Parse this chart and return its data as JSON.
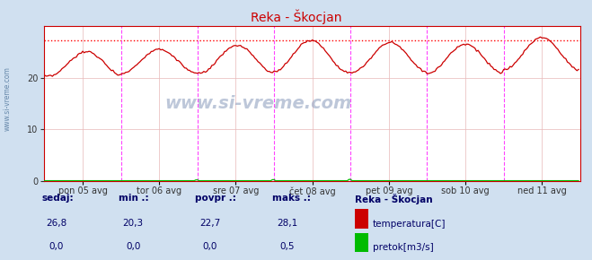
{
  "title": "Reka - Škocjan",
  "bg_color": "#d0e0f0",
  "plot_bg_color": "#ffffff",
  "x_labels": [
    "pon 05 avg",
    "tor 06 avg",
    "sre 07 avg",
    "čet 08 avg",
    "pet 09 avg",
    "sob 10 avg",
    "ned 11 avg"
  ],
  "y_ticks": [
    0,
    10,
    20
  ],
  "ylim": [
    0,
    30
  ],
  "xlim": [
    0,
    336
  ],
  "grid_color": "#e8b8b8",
  "temp_color": "#cc0000",
  "flow_color": "#00bb00",
  "max_line_color": "#ff0000",
  "max_line_y": 27.2,
  "vline_color": "#ff44ff",
  "watermark": "www.si-vreme.com",
  "legend_title": "Reka - Škocjan",
  "legend_items": [
    "temperatura[C]",
    "pretok[m3/s]"
  ],
  "legend_colors": [
    "#cc0000",
    "#00bb00"
  ],
  "stats_labels": [
    "sedaj:",
    "min .:",
    "povpr .:",
    "maks .:"
  ],
  "stats_temp": [
    "26,8",
    "20,3",
    "22,7",
    "28,1"
  ],
  "stats_flow": [
    "0,0",
    "0,0",
    "0,0",
    "0,5"
  ],
  "n_points": 336,
  "vlines_x": [
    48,
    96,
    144,
    192,
    240,
    288
  ],
  "x_tick_positions": [
    24,
    72,
    120,
    168,
    216,
    264,
    312
  ],
  "sidebar_text": "www.si-vreme.com",
  "sidebar_color": "#6688aa",
  "peaks": [
    25.0,
    25.5,
    26.2,
    27.2,
    26.8,
    26.5,
    27.8
  ],
  "troughs": [
    20.2,
    20.8,
    20.8,
    21.0,
    21.0,
    20.8,
    21.5
  ],
  "peak_offsets": [
    0.55,
    0.5,
    0.52,
    0.48,
    0.52,
    0.5,
    0.5
  ]
}
